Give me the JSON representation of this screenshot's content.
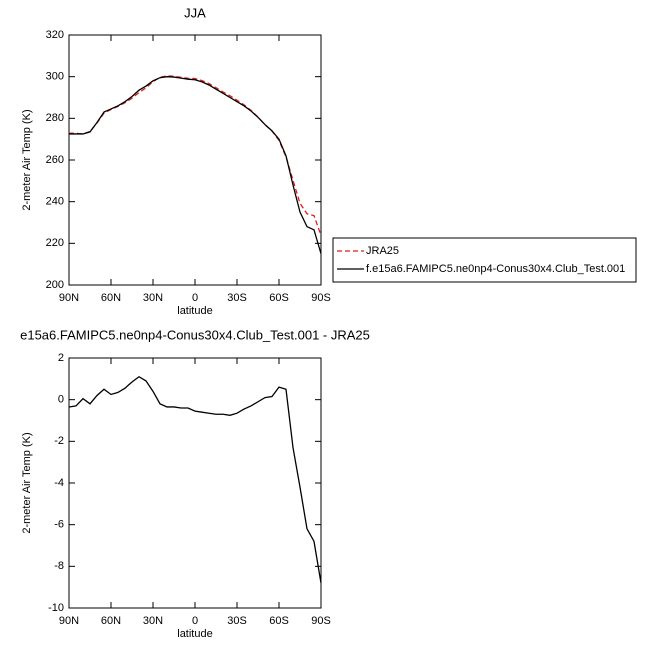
{
  "chart_data": [
    {
      "type": "line",
      "title": "JJA",
      "xlabel": "latitude",
      "ylabel": "2-meter Air Temp (K)",
      "x": [
        90,
        85,
        80,
        75,
        70,
        65,
        60,
        55,
        50,
        45,
        40,
        35,
        30,
        25,
        20,
        15,
        10,
        5,
        0,
        -5,
        -10,
        -15,
        -20,
        -25,
        -30,
        -35,
        -40,
        -45,
        -50,
        -55,
        -60,
        -65,
        -70,
        -75,
        -80,
        -85,
        -90
      ],
      "series": [
        {
          "name": "JRA25",
          "color": "#e41a1c",
          "linestyle": "dashed",
          "values": [
            272.9,
            272.8,
            272.5,
            273.7,
            277.8,
            282.5,
            284.3,
            285.7,
            287.5,
            289.7,
            292.4,
            294.6,
            297.6,
            299.7,
            300.4,
            300.2,
            299.7,
            299.2,
            299.1,
            298.1,
            296.7,
            294.7,
            292.7,
            290.8,
            288.7,
            286.5,
            283.8,
            280.6,
            276.9,
            273.9,
            269.4,
            261.5,
            250.3,
            239.2,
            234.2,
            233.3,
            223.8
          ]
        },
        {
          "name": "f.e15a6.FAMIPC5.ne0np4-Conus30x4.Club_Test.001",
          "color": "#000000",
          "linestyle": "solid",
          "values": [
            272.5,
            272.5,
            272.5,
            273.5,
            278,
            283,
            284.5,
            286,
            288,
            290.5,
            293.5,
            295.5,
            298,
            299.5,
            300,
            299.8,
            299.3,
            298.8,
            298.5,
            297.5,
            296,
            294,
            292,
            290,
            288,
            286,
            283.5,
            280.5,
            277,
            274,
            270,
            262,
            248,
            235,
            228,
            226.5,
            215
          ]
        }
      ],
      "xlim": [
        90,
        -90
      ],
      "xticks": [
        {
          "value": 90,
          "label": "90N"
        },
        {
          "value": 60,
          "label": "60N"
        },
        {
          "value": 30,
          "label": "30N"
        },
        0,
        {
          "value": -30,
          "label": "30S"
        },
        {
          "value": -60,
          "label": "60S"
        },
        {
          "value": -90,
          "label": "90S"
        }
      ],
      "ylim": [
        200,
        320
      ],
      "yticks": [
        200,
        220,
        240,
        260,
        280,
        300,
        320
      ],
      "legend": "right"
    },
    {
      "type": "line",
      "title": "e15a6.FAMIPC5.ne0np4-Conus30x4.Club_Test.001 - JRA25",
      "xlabel": "latitude",
      "ylabel": "2-meter Air Temp (K)",
      "x": [
        90,
        85,
        80,
        75,
        70,
        65,
        60,
        55,
        50,
        45,
        40,
        35,
        30,
        25,
        20,
        15,
        10,
        5,
        0,
        -5,
        -10,
        -15,
        -20,
        -25,
        -30,
        -35,
        -40,
        -45,
        -50,
        -55,
        -60,
        -65,
        -70,
        -75,
        -80,
        -85,
        -90
      ],
      "series": [
        {
          "color": "#000000",
          "linestyle": "solid",
          "values": [
            -0.35,
            -0.3,
            0.05,
            -0.2,
            0.2,
            0.5,
            0.25,
            0.35,
            0.55,
            0.85,
            1.1,
            0.9,
            0.4,
            -0.2,
            -0.35,
            -0.35,
            -0.4,
            -0.4,
            -0.55,
            -0.6,
            -0.65,
            -0.7,
            -0.7,
            -0.75,
            -0.65,
            -0.45,
            -0.3,
            -0.1,
            0.1,
            0.15,
            0.6,
            0.5,
            -2.3,
            -4.2,
            -6.2,
            -6.8,
            -8.8
          ]
        }
      ],
      "xlim": [
        90,
        -90
      ],
      "xticks": [
        {
          "value": 90,
          "label": "90N"
        },
        {
          "value": 60,
          "label": "60N"
        },
        {
          "value": 30,
          "label": "30N"
        },
        0,
        {
          "value": -30,
          "label": "30S"
        },
        {
          "value": -60,
          "label": "60S"
        },
        {
          "value": -90,
          "label": "90S"
        }
      ],
      "ylim": [
        -10,
        2
      ],
      "yticks": [
        -10,
        -8,
        -6,
        -4,
        -2,
        0,
        2
      ],
      "legend": "none"
    }
  ]
}
